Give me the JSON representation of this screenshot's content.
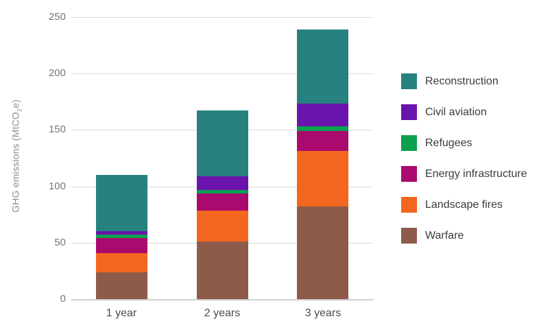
{
  "chart_data": {
    "type": "bar",
    "stacked": true,
    "title": "",
    "xlabel": "",
    "ylabel": "GHG emissions (MtCO2e)",
    "ylabel_parts": {
      "prefix": "GHG emissions (MtCO",
      "sub": "2",
      "suffix": "e)"
    },
    "categories": [
      "1 year",
      "2 years",
      "3 years"
    ],
    "series": [
      {
        "name": "Warfare",
        "color": "#8e5a49",
        "values": [
          23.5,
          51.0,
          82.0
        ]
      },
      {
        "name": "Landscape fires",
        "color": "#f3661f",
        "values": [
          17.0,
          27.5,
          49.5
        ]
      },
      {
        "name": "Energy infrastructure",
        "color": "#aa096e",
        "values": [
          13.5,
          15.0,
          17.5
        ]
      },
      {
        "name": "Refugees",
        "color": "#0aa04f",
        "values": [
          3.0,
          3.5,
          4.5
        ]
      },
      {
        "name": "Civil aviation",
        "color": "#6b14ad",
        "values": [
          3.5,
          12.0,
          20.0
        ]
      },
      {
        "name": "Reconstruction",
        "color": "#26817f",
        "values": [
          49.5,
          58.0,
          65.5
        ]
      }
    ],
    "totals": [
      110,
      167,
      239
    ],
    "ylim": [
      0,
      250
    ],
    "yticks": [
      0,
      50,
      100,
      150,
      200,
      250
    ],
    "grid": true,
    "legend_position": "right",
    "legend_order_top_to_bottom": [
      "Reconstruction",
      "Civil aviation",
      "Refugees",
      "Energy infrastructure",
      "Landscape fires",
      "Warfare"
    ],
    "colors": {
      "gridline": "#d9d9d9",
      "axis_line": "#cfcfcf",
      "y_tick_text": "#767676",
      "x_tick_text": "#4a4a4a",
      "legend_text": "#3b3b3b",
      "y_title_text": "#8d8d8d"
    }
  }
}
